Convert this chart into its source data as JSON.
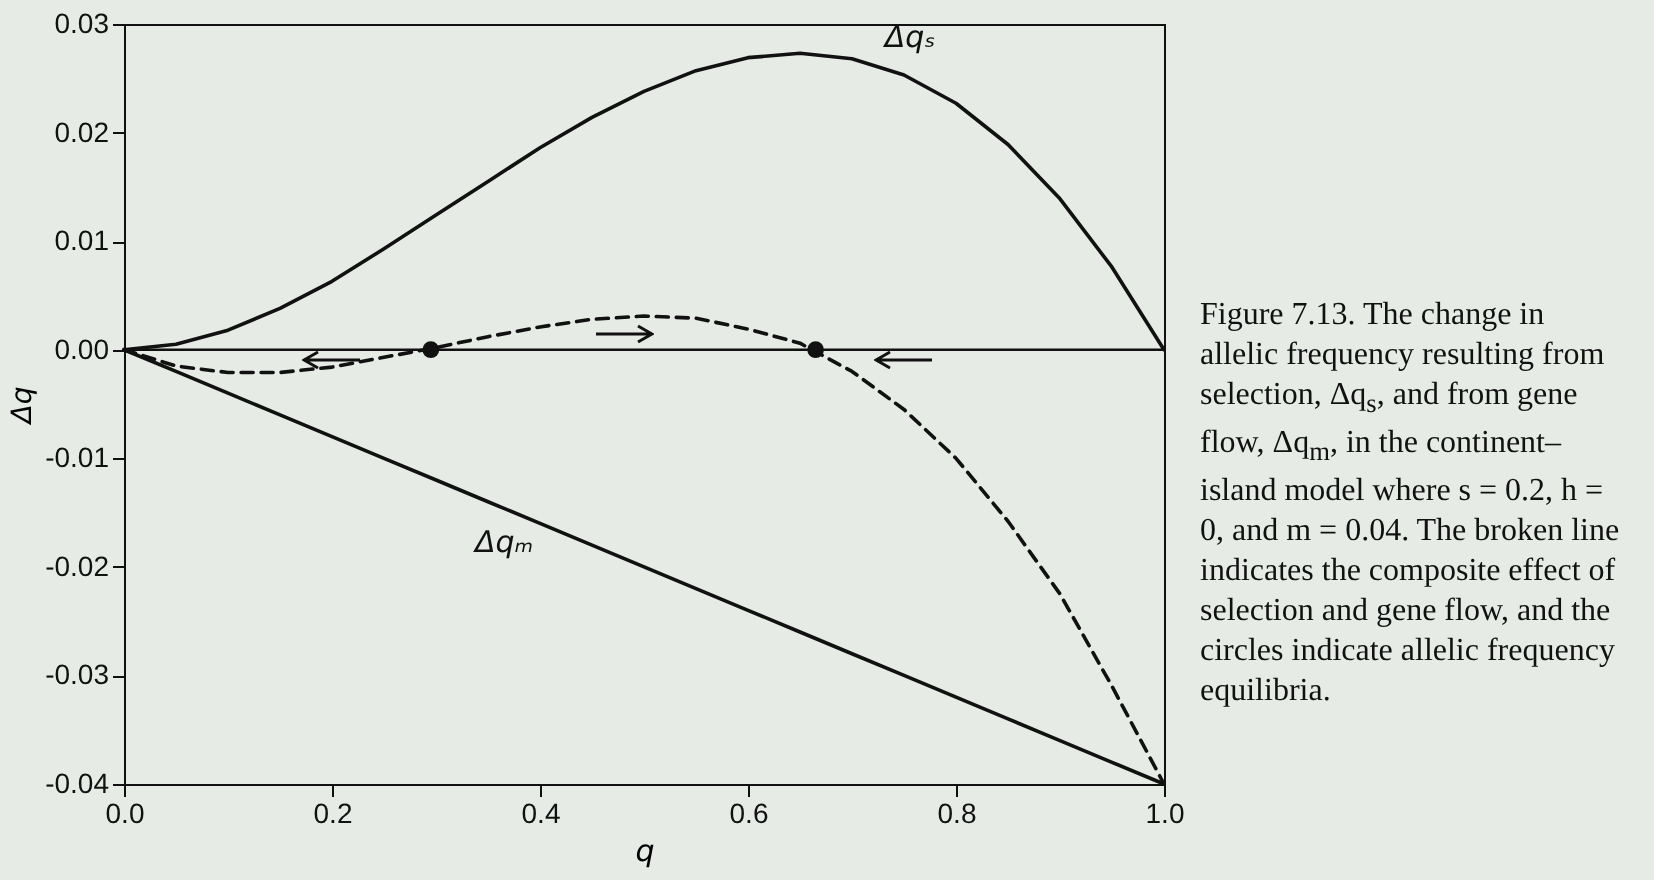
{
  "chart_data": {
    "type": "line",
    "xlabel": "q",
    "ylabel": "Δq",
    "x": [
      0,
      0.05,
      0.1,
      0.15,
      0.2,
      0.25,
      0.3,
      0.35,
      0.4,
      0.45,
      0.5,
      0.55,
      0.6,
      0.65,
      0.7,
      0.75,
      0.8,
      0.85,
      0.9,
      0.95,
      1
    ],
    "series": [
      {
        "name": "Δqₛ",
        "color": "#111111",
        "line_style": "solid",
        "values": [
          0,
          0.0005,
          0.0018,
          0.0038,
          0.0063,
          0.0093,
          0.0124,
          0.0155,
          0.0186,
          0.0214,
          0.0238,
          0.0257,
          0.0269,
          0.0273,
          0.0268,
          0.0253,
          0.0227,
          0.0189,
          0.0139,
          0.0076,
          0
        ]
      },
      {
        "name": "Δqₘ",
        "color": "#111111",
        "line_style": "solid",
        "values": [
          0,
          -0.002,
          -0.004,
          -0.006,
          -0.008,
          -0.01,
          -0.012,
          -0.014,
          -0.016,
          -0.018,
          -0.02,
          -0.022,
          -0.024,
          -0.026,
          -0.028,
          -0.03,
          -0.032,
          -0.034,
          -0.036,
          -0.038,
          -0.04
        ]
      },
      {
        "color": "#111111",
        "line_style": "dashed",
        "values": [
          0,
          -0.0015,
          -0.0021,
          -0.0021,
          -0.0016,
          -0.0007,
          0.0002,
          0.0012,
          0.0021,
          0.0028,
          0.0031,
          0.0029,
          0.0019,
          0.0006,
          -0.002,
          -0.0055,
          -0.01,
          -0.0158,
          -0.0225,
          -0.031,
          -0.04
        ]
      },
      {
        "type": "scatter",
        "color": "#111111",
        "marker": "circle",
        "x": [
          0.295,
          0.665
        ],
        "values": [
          0,
          0
        ]
      }
    ],
    "ref_lines": [
      {
        "axis": "y",
        "value": 0,
        "color": "#111111"
      }
    ],
    "xlim": [
      0,
      1
    ],
    "ylim": [
      -0.04,
      0.03
    ],
    "xticks": [
      {
        "value": 0,
        "label": "0.0"
      },
      {
        "value": 0.2,
        "label": "0.2"
      },
      {
        "value": 0.4,
        "label": "0.4"
      },
      {
        "value": 0.6,
        "label": "0.6"
      },
      {
        "value": 0.8,
        "label": "0.8"
      },
      {
        "value": 1,
        "label": "1.0"
      }
    ],
    "yticks": [
      {
        "value": -0.04,
        "label": "-0.04"
      },
      {
        "value": -0.03,
        "label": "-0.03"
      },
      {
        "value": -0.02,
        "label": "-0.02"
      },
      {
        "value": -0.01,
        "label": "-0.01"
      },
      {
        "value": 0,
        "label": "0.00"
      },
      {
        "value": 0.01,
        "label": "0.01"
      },
      {
        "value": 0.02,
        "label": "0.02"
      },
      {
        "value": 0.03,
        "label": "0.03"
      }
    ],
    "grid": false,
    "annotations": [
      "Figure 7.13. The change in allelic frequency resulting from selection, Δq$_{s}$, and from gene flow, Δq$_{m}$, in the continent–island model where s = 0.2, h = 0, and m = 0.04. The broken line indicates the composite effect of selection and gene flow, and the circles indicate allelic frequency equilibria."
    ]
  }
}
